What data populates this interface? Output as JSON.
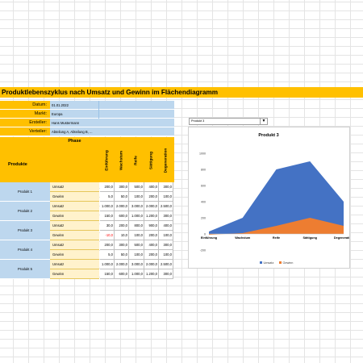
{
  "title": "Produktlebenszyklus nach Umsatz und Gewinn im Flächendiagramm",
  "info": [
    {
      "label": "Datum:",
      "value": "01.01.2022"
    },
    {
      "label": "Markt:",
      "value": "Europa"
    },
    {
      "label": "Ersteller:",
      "value": "Hans Mustermann"
    },
    {
      "label": "Verteiler:",
      "value": "Abteilung A, Abteilung B, ..."
    }
  ],
  "table": {
    "phase_label": "Phase",
    "produkte_label": "Produkte",
    "phases": [
      "Einführung",
      "Wachstum",
      "Reife",
      "Sättigung",
      "Degeneration"
    ],
    "products": [
      {
        "name": "Produkt 1",
        "rows": [
          {
            "type": "Umsatz",
            "values": [
              "200,0",
              "300,0",
              "500,0",
              "400,0",
              "300,0"
            ]
          },
          {
            "type": "Gewinn",
            "values": [
              "5,0",
              "50,0",
              "100,0",
              "200,0",
              "100,0"
            ]
          }
        ]
      },
      {
        "name": "Produkt 2",
        "rows": [
          {
            "type": "Umsatz",
            "values": [
              "1.000,0",
              "2.000,0",
              "3.000,0",
              "2.000,0",
              "2.500,0"
            ]
          },
          {
            "type": "Gewinn",
            "values": [
              "150,0",
              "600,0",
              "1.000,0",
              "1.200,0",
              "300,0"
            ]
          }
        ]
      },
      {
        "name": "Produkt 3",
        "rows": [
          {
            "type": "Umsatz",
            "values": [
              "30,0",
              "200,0",
              "800,0",
              "900,0",
              "400,0"
            ]
          },
          {
            "type": "Gewinn",
            "values": [
              "-10,0",
              "10,0",
              "100,0",
              "200,0",
              "100,0"
            ]
          }
        ]
      },
      {
        "name": "Produkt 4",
        "rows": [
          {
            "type": "Umsatz",
            "values": [
              "200,0",
              "300,0",
              "500,0",
              "400,0",
              "300,0"
            ]
          },
          {
            "type": "Gewinn",
            "values": [
              "5,0",
              "50,0",
              "100,0",
              "200,0",
              "100,0"
            ]
          }
        ]
      },
      {
        "name": "Produkt 5",
        "rows": [
          {
            "type": "Umsatz",
            "values": [
              "1.000,0",
              "2.000,0",
              "3.000,0",
              "2.000,0",
              "2.500,0"
            ]
          },
          {
            "type": "Gewinn",
            "values": [
              "150,0",
              "600,0",
              "1.000,0",
              "1.200,0",
              "300,0"
            ]
          }
        ]
      }
    ]
  },
  "dropdown": {
    "selected": "Produkt 3"
  },
  "colors": {
    "orange": "#ffc000",
    "blue_light": "#bdd7ee",
    "cream": "#fff2cc",
    "umsatz": "#4472c4",
    "gewinn": "#ed7d31",
    "negative": "#ff0000"
  },
  "icons": {
    "dropdown": "chevron-down-icon"
  },
  "chart_data": {
    "type": "area",
    "title": "Produkt 3",
    "categories": [
      "Einführung",
      "Wachstum",
      "Reife",
      "Sättigung",
      "Degeneration"
    ],
    "series": [
      {
        "name": "Umsatz",
        "values": [
          30,
          200,
          800,
          900,
          400
        ],
        "color": "#4472c4"
      },
      {
        "name": "Gewinn",
        "values": [
          -10,
          10,
          100,
          200,
          100
        ],
        "color": "#ed7d31"
      }
    ],
    "ylim": [
      -200,
      1000
    ],
    "yticks": [
      "-200",
      "0",
      "200",
      "400",
      "600",
      "800",
      "1000"
    ],
    "legend": "bottom",
    "grid": false
  }
}
